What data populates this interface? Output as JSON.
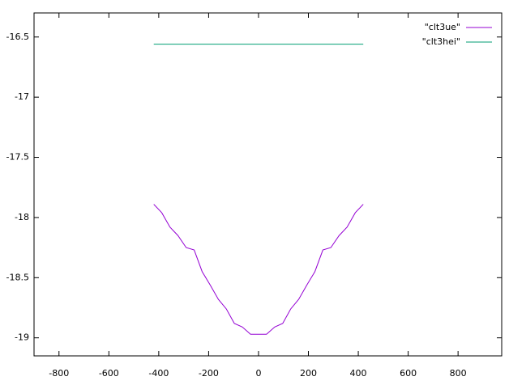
{
  "chart_data": {
    "type": "line",
    "x": [
      -420,
      -388,
      -355,
      -323,
      -290,
      -258,
      -226,
      -194,
      -161,
      -129,
      -97,
      -65,
      -32,
      0,
      32,
      65,
      97,
      129,
      161,
      194,
      226,
      258,
      290,
      323,
      355,
      388,
      420
    ],
    "series": [
      {
        "name": "\"clt3ue\"",
        "color": "#9400d3",
        "values": [
          -17.89,
          -17.96,
          -18.08,
          -18.15,
          -18.25,
          -18.27,
          -18.45,
          -18.56,
          -18.68,
          -18.76,
          -18.88,
          -18.91,
          -18.97,
          -18.97,
          -18.97,
          -18.91,
          -18.88,
          -18.76,
          -18.68,
          -18.56,
          -18.45,
          -18.27,
          -18.25,
          -18.15,
          -18.08,
          -17.96,
          -17.89
        ]
      },
      {
        "name": "\"clt3hei\"",
        "color": "#009e73",
        "values": [
          -16.56,
          -16.56,
          -16.56,
          -16.56,
          -16.56,
          -16.56,
          -16.56,
          -16.56,
          -16.56,
          -16.56,
          -16.56,
          -16.56,
          -16.56,
          -16.56,
          -16.56,
          -16.56,
          -16.56,
          -16.56,
          -16.56,
          -16.56,
          -16.56,
          -16.56,
          -16.56,
          -16.56,
          -16.56,
          -16.56,
          -16.56
        ]
      }
    ],
    "xlim": [
      -900,
      975
    ],
    "ylim": [
      -19.15,
      -16.3
    ],
    "xticks": [
      -800,
      -600,
      -400,
      -200,
      0,
      200,
      400,
      600,
      800
    ],
    "yticks": [
      -16.5,
      -17,
      -17.5,
      -18,
      -18.5,
      -19
    ],
    "legend": "top-right"
  }
}
